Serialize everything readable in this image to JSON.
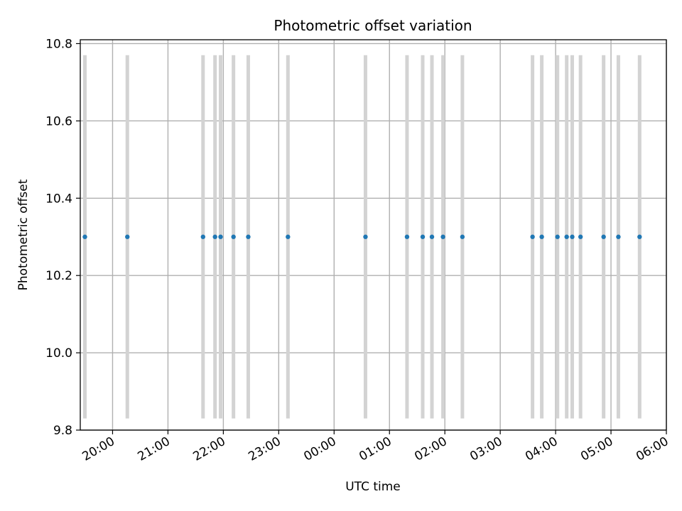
{
  "chart_data": {
    "type": "scatter",
    "title": "Photometric offset variation",
    "xlabel": "UTC time",
    "ylabel": "Photometric offset",
    "xlim": [
      "19:25",
      "06:00"
    ],
    "ylim": [
      9.8,
      10.81
    ],
    "grid": true,
    "x_ticks": [
      "20:00",
      "21:00",
      "22:00",
      "23:00",
      "00:00",
      "01:00",
      "02:00",
      "03:00",
      "04:00",
      "05:00",
      "06:00"
    ],
    "y_ticks": [
      "9.8",
      "10.0",
      "10.2",
      "10.4",
      "10.6",
      "10.8"
    ],
    "y_tick_values": [
      9.8,
      10.0,
      10.2,
      10.4,
      10.6,
      10.8
    ],
    "interval_band": [
      9.83,
      10.77
    ],
    "band_color": "#d3d3d3",
    "point_color": "#1f77b4",
    "points": [
      {
        "x": "19:30",
        "y": 10.3
      },
      {
        "x": "20:16",
        "y": 10.3
      },
      {
        "x": "21:38",
        "y": 10.3
      },
      {
        "x": "21:51",
        "y": 10.3
      },
      {
        "x": "21:57",
        "y": 10.3
      },
      {
        "x": "22:11",
        "y": 10.3
      },
      {
        "x": "22:27",
        "y": 10.3
      },
      {
        "x": "23:10",
        "y": 10.3
      },
      {
        "x": "00:34",
        "y": 10.3
      },
      {
        "x": "01:19",
        "y": 10.3
      },
      {
        "x": "01:36",
        "y": 10.3
      },
      {
        "x": "01:46",
        "y": 10.3
      },
      {
        "x": "01:58",
        "y": 10.3
      },
      {
        "x": "02:19",
        "y": 10.3
      },
      {
        "x": "03:35",
        "y": 10.3
      },
      {
        "x": "03:45",
        "y": 10.3
      },
      {
        "x": "04:02",
        "y": 10.3
      },
      {
        "x": "04:12",
        "y": 10.3
      },
      {
        "x": "04:18",
        "y": 10.3
      },
      {
        "x": "04:27",
        "y": 10.3
      },
      {
        "x": "04:52",
        "y": 10.3
      },
      {
        "x": "05:08",
        "y": 10.3
      },
      {
        "x": "05:31",
        "y": 10.3
      }
    ]
  }
}
